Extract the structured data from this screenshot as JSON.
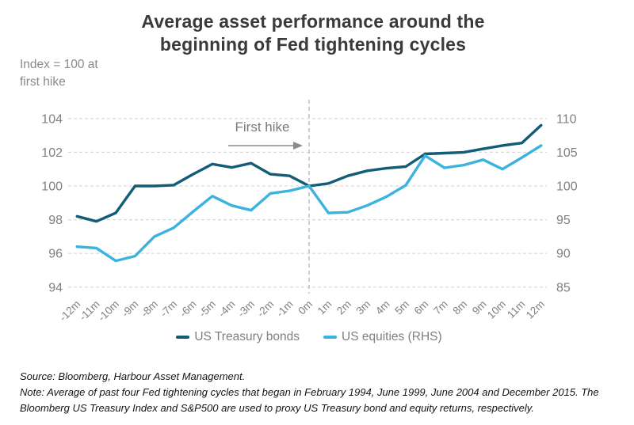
{
  "title": {
    "line1": "Average asset performance around the",
    "line2": "beginning of Fed tightening cycles"
  },
  "notes": {
    "index_line1": "Index = 100 at",
    "index_line2": "first hike",
    "source": "Source: Bloomberg, Harbour Asset Management.",
    "note": "Note: Average of past four Fed tightening cycles that began in February 1994, June 1999, June 2004 and December 2015.  The Bloomberg US Treasury Index and S&P500 are used to proxy US Treasury bond and equity returns, respectively."
  },
  "annotation": {
    "text": "First hike",
    "at_category": "0m"
  },
  "colors": {
    "treasury_line": "#125c77",
    "equities_line": "#3ab3de",
    "gridline": "#d9d9d9",
    "event_line": "#b5c0c7",
    "axis_text": "#808080",
    "annotation_text": "#7a7a7a",
    "arrow": "#808080",
    "title_text": "#3a3a3a"
  },
  "chart_data": {
    "type": "line",
    "title": "Average asset performance around the beginning of Fed tightening cycles",
    "categories": [
      "-12m",
      "-11m",
      "-10m",
      "-9m",
      "-8m",
      "-7m",
      "-6m",
      "-5m",
      "-4m",
      "-3m",
      "-2m",
      "-1m",
      "0m",
      "1m",
      "2m",
      "3m",
      "4m",
      "5m",
      "6m",
      "7m",
      "8m",
      "9m",
      "10m",
      "11m",
      "12m"
    ],
    "series": [
      {
        "name": "US Treasury bonds",
        "axis": "left",
        "color": "#125c77",
        "values": [
          98.2,
          97.9,
          98.4,
          100.0,
          100.0,
          100.05,
          100.7,
          101.3,
          101.1,
          101.35,
          100.7,
          100.6,
          100.0,
          100.15,
          100.6,
          100.9,
          101.05,
          101.15,
          101.9,
          101.95,
          102.0,
          102.2,
          102.4,
          102.55,
          103.6
        ]
      },
      {
        "name": "US equities (RHS)",
        "axis": "right",
        "color": "#3ab3de",
        "values": [
          91.0,
          90.8,
          88.9,
          89.6,
          92.5,
          93.8,
          96.2,
          98.5,
          97.1,
          96.4,
          98.9,
          99.3,
          100.0,
          96.0,
          96.1,
          97.1,
          98.4,
          100.1,
          104.5,
          102.7,
          103.1,
          103.9,
          102.5,
          104.2,
          106.0
        ]
      }
    ],
    "left_axis": {
      "ticks": [
        104,
        102,
        100,
        98,
        96,
        94
      ],
      "range": [
        94,
        104
      ]
    },
    "right_axis": {
      "ticks": [
        110,
        105,
        100,
        95,
        90,
        85
      ],
      "range": [
        85,
        110
      ]
    },
    "grid": "horizontal-dashed",
    "legend_position": "bottom",
    "event_line_category": "0m"
  }
}
